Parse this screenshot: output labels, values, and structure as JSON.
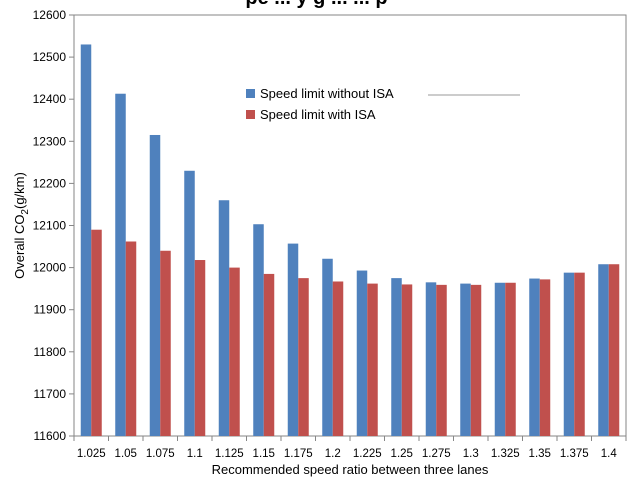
{
  "header": {
    "cut_title": "pe      ... y    g      ...        ... p"
  },
  "chart_data": {
    "type": "bar",
    "xlabel": "Recommended speed ratio between three lanes",
    "ylabel_prefix": "Overall CO",
    "ylabel_sub": "2",
    "ylabel_suffix": "(g/km)",
    "ylim": [
      11600,
      12600
    ],
    "ytick_step": 100,
    "grid": false,
    "legend_position": "upper-center",
    "categories": [
      "1.025",
      "1.05",
      "1.075",
      "1.1",
      "1.125",
      "1.15",
      "1.175",
      "1.2",
      "1.225",
      "1.25",
      "1.275",
      "1.3",
      "1.325",
      "1.35",
      "1.375",
      "1.4"
    ],
    "series": [
      {
        "name": "Speed limit without ISA",
        "color": "#4f81bd",
        "values": [
          12530,
          12413,
          12315,
          12230,
          12160,
          12103,
          12057,
          12021,
          11993,
          11975,
          11965,
          11962,
          11964,
          11974,
          11988,
          12008
        ]
      },
      {
        "name": "Speed limit with ISA",
        "color": "#c0504d",
        "values": [
          12090,
          12062,
          12040,
          12018,
          12000,
          11985,
          11975,
          11967,
          11962,
          11960,
          11959,
          11959,
          11964,
          11972,
          11988,
          12008
        ]
      }
    ]
  }
}
